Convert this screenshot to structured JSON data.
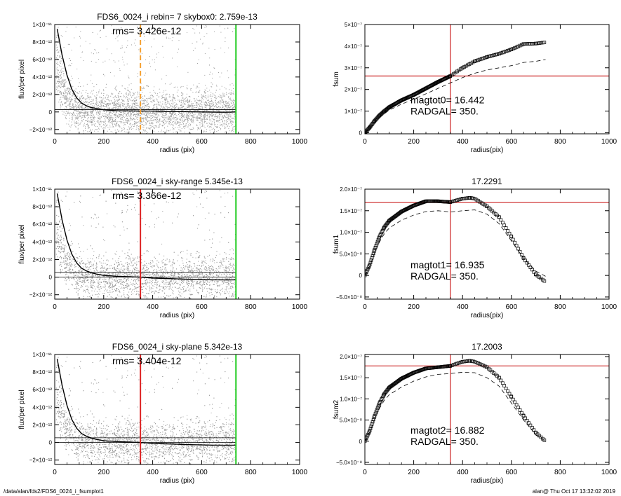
{
  "footer": {
    "path": "/data/alan/fds2/FDS6_0024_i_fsumplot1",
    "stamp": "alan@  Thu Oct 17 13:32:02 2019"
  },
  "chart_data": [
    {
      "type": "scatter",
      "title": "FDS6_0024_i rebin= 7    skybox0:  2.759e-13",
      "annotation": "rms= 3.426e-12",
      "xlabel": "radius (pix)",
      "ylabel": "flux/per pixel",
      "xlim": [
        0,
        1000
      ],
      "ylim": [
        -2.5e-12,
        1e-11
      ],
      "xticks": [
        0,
        200,
        400,
        600,
        800,
        1000
      ],
      "xtick_labels": [
        "0",
        "200",
        "400",
        "600",
        "800",
        "1000"
      ],
      "yticks": [
        -2e-12,
        0,
        2e-12,
        4e-12,
        6e-12,
        8e-12,
        1e-11
      ],
      "ytick_labels": [
        "−2×10⁻¹²",
        "0",
        "2×10⁻¹²",
        "4×10⁻¹²",
        "6×10⁻¹²",
        "8×10⁻¹²",
        "1×10⁻¹¹"
      ],
      "hlines": [
        2.759e-13,
        2.759e-13
      ],
      "vlines": [
        {
          "x": 350,
          "color": "#f5a030",
          "dash": true
        },
        {
          "x": 740,
          "color": "#22cc22",
          "dash": false
        }
      ],
      "profile_line": {
        "x": [
          10,
          30,
          50,
          70,
          90,
          110,
          130,
          150,
          170,
          200,
          250,
          300,
          350,
          400,
          450,
          500,
          550,
          600,
          650,
          700,
          740
        ],
        "y": [
          9.5e-12,
          6.5e-12,
          4.2e-12,
          2.6e-12,
          1.6e-12,
          1e-12,
          7e-13,
          5e-13,
          4e-13,
          2.5e-13,
          1.5e-13,
          1.2e-13,
          1e-13,
          1e-13,
          5e-14,
          5e-14,
          2e-14,
          0,
          -2e-14,
          -3e-14,
          0
        ]
      },
      "colors": {
        "points": "#9a9a9a",
        "line": "#000000"
      }
    },
    {
      "type": "line",
      "title": "",
      "annotation": [
        "magtot0=  16.442",
        "RADGAL=    350."
      ],
      "xlabel": "radius(pix)",
      "ylabel": "fsum",
      "xlim": [
        0,
        1000
      ],
      "ylim": [
        -5e-09,
        5e-07
      ],
      "xticks": [
        0,
        200,
        400,
        600,
        800,
        1000
      ],
      "xtick_labels": [
        "0",
        "200",
        "400",
        "600",
        "800",
        "1000"
      ],
      "yticks": [
        0,
        1e-07,
        2e-07,
        3e-07,
        4e-07,
        5e-07
      ],
      "ytick_labels": [
        "0",
        "1×10⁻⁷",
        "2×10⁻⁷",
        "3×10⁻⁷",
        "4×10⁻⁷",
        "5×10⁻⁷"
      ],
      "crosshair": {
        "x": 350,
        "y": 2.62e-07,
        "color": "#cc2222"
      },
      "series": [
        {
          "style": "squares",
          "x": [
            0,
            20,
            40,
            60,
            80,
            100,
            150,
            200,
            250,
            300,
            350,
            400,
            450,
            500,
            550,
            600,
            650,
            700,
            740
          ],
          "y": [
            0,
            2.5e-08,
            5.5e-08,
            8e-08,
            1e-07,
            1.18e-07,
            1.5e-07,
            1.75e-07,
            2.05e-07,
            2.35e-07,
            2.62e-07,
            3e-07,
            3.3e-07,
            3.5e-07,
            3.65e-07,
            3.85e-07,
            4.1e-07,
            4.12e-07,
            4.18e-07
          ]
        },
        {
          "style": "dashed",
          "x": [
            0,
            20,
            40,
            60,
            80,
            100,
            150,
            200,
            250,
            300,
            350,
            400,
            450,
            500,
            550,
            600,
            650,
            700,
            740
          ],
          "y": [
            0,
            2.2e-08,
            4.8e-08,
            7e-08,
            8.8e-08,
            1.05e-07,
            1.32e-07,
            1.55e-07,
            1.8e-07,
            2.05e-07,
            2.3e-07,
            2.55e-07,
            2.75e-07,
            2.9e-07,
            3e-07,
            3.1e-07,
            3.25e-07,
            3.3e-07,
            3.38e-07
          ]
        }
      ]
    },
    {
      "type": "scatter",
      "title": "FDS6_0024_i sky-range  5.345e-13",
      "annotation": "rms= 3.366e-12",
      "xlabel": "radius (pix)",
      "ylabel": "flux/per pixel",
      "xlim": [
        0,
        1000
      ],
      "ylim": [
        -2.5e-12,
        1e-11
      ],
      "xticks": [
        0,
        200,
        400,
        600,
        800,
        1000
      ],
      "xtick_labels": [
        "0",
        "200",
        "400",
        "600",
        "800",
        "1000"
      ],
      "yticks": [
        -2e-12,
        0,
        2e-12,
        4e-12,
        6e-12,
        8e-12,
        1e-11
      ],
      "ytick_labels": [
        "−2×10⁻¹²",
        "0",
        "2×10⁻¹²",
        "4×10⁻¹²",
        "6×10⁻¹²",
        "8×10⁻¹²",
        "1×10⁻¹¹"
      ],
      "hlines": [
        5.345e-13,
        0
      ],
      "vlines": [
        {
          "x": 350,
          "color": "#dd2222",
          "dash": false
        },
        {
          "x": 740,
          "color": "#22cc22",
          "dash": false
        }
      ],
      "profile_line": {
        "x": [
          10,
          30,
          50,
          70,
          90,
          110,
          130,
          150,
          170,
          200,
          250,
          300,
          350,
          400,
          450,
          500,
          550,
          600,
          650,
          700,
          740
        ],
        "y": [
          9.5e-12,
          6.5e-12,
          4.2e-12,
          2.6e-12,
          1.6e-12,
          1e-12,
          7e-13,
          5e-13,
          3.5e-13,
          2e-13,
          1e-13,
          5e-14,
          0,
          -1e-13,
          -1.5e-13,
          -2e-13,
          -2.5e-13,
          -2.8e-13,
          -3e-13,
          -3.2e-13,
          -3e-13
        ]
      },
      "colors": {
        "points": "#9a9a9a",
        "line": "#000000"
      }
    },
    {
      "type": "line",
      "title": "17.2291",
      "annotation": [
        "magtot1=  16.935",
        "RADGAL=    350."
      ],
      "xlabel": "radius(pix)",
      "ylabel": "fsum1",
      "xlim": [
        0,
        1000
      ],
      "ylim": [
        -5.5e-08,
        2e-07
      ],
      "xticks": [
        0,
        200,
        400,
        600,
        800,
        1000
      ],
      "xtick_labels": [
        "0",
        "200",
        "400",
        "600",
        "800",
        "1000"
      ],
      "yticks": [
        -5e-08,
        0,
        5e-08,
        1e-07,
        1.5e-07,
        2e-07
      ],
      "ytick_labels": [
        "−5.0×10⁻⁸",
        "0",
        "5.0×10⁻⁸",
        "1.0×10⁻⁷",
        "1.5×10⁻⁷",
        "2.0×10⁻⁷"
      ],
      "crosshair": {
        "x": 350,
        "y": 1.69e-07,
        "color": "#cc2222"
      },
      "series": [
        {
          "style": "squares",
          "x": [
            0,
            20,
            40,
            60,
            80,
            100,
            150,
            200,
            250,
            300,
            350,
            400,
            430,
            450,
            500,
            550,
            600,
            650,
            700,
            740
          ],
          "y": [
            0,
            2.5e-08,
            6e-08,
            9e-08,
            1.12e-07,
            1.27e-07,
            1.48e-07,
            1.62e-07,
            1.72e-07,
            1.72e-07,
            1.7e-07,
            1.78e-07,
            1.8e-07,
            1.78e-07,
            1.6e-07,
            1.35e-07,
            9e-08,
            4e-08,
            2e-09,
            -1.5e-08
          ]
        },
        {
          "style": "dashed",
          "x": [
            0,
            20,
            40,
            60,
            80,
            100,
            150,
            200,
            250,
            300,
            350,
            400,
            450,
            500,
            550,
            600,
            650,
            700,
            740
          ],
          "y": [
            0,
            2.2e-08,
            5.2e-08,
            7.8e-08,
            9.7e-08,
            1.1e-07,
            1.28e-07,
            1.4e-07,
            1.48e-07,
            1.5e-07,
            1.47e-07,
            1.5e-07,
            1.52e-07,
            1.42e-07,
            1.2e-07,
            8e-08,
            4e-08,
            1e-08,
            -2e-09
          ]
        }
      ]
    },
    {
      "type": "scatter",
      "title": "FDS6_0024_i sky-plane  5.342e-13",
      "annotation": "rms= 3.404e-12",
      "xlabel": "radius (pix)",
      "ylabel": "flux/per pixel",
      "xlim": [
        0,
        1000
      ],
      "ylim": [
        -2.5e-12,
        1e-11
      ],
      "xticks": [
        0,
        200,
        400,
        600,
        800,
        1000
      ],
      "xtick_labels": [
        "0",
        "200",
        "400",
        "600",
        "800",
        "1000"
      ],
      "yticks": [
        -2e-12,
        0,
        2e-12,
        4e-12,
        6e-12,
        8e-12,
        1e-11
      ],
      "ytick_labels": [
        "−2×10⁻¹²",
        "0",
        "2×10⁻¹²",
        "4×10⁻¹²",
        "6×10⁻¹²",
        "8×10⁻¹²",
        "1×10⁻¹¹"
      ],
      "hlines": [
        5.342e-13,
        0
      ],
      "vlines": [
        {
          "x": 350,
          "color": "#dd2222",
          "dash": false
        },
        {
          "x": 740,
          "color": "#22cc22",
          "dash": false
        }
      ],
      "profile_line": {
        "x": [
          10,
          30,
          50,
          70,
          90,
          110,
          130,
          150,
          170,
          200,
          250,
          300,
          350,
          400,
          450,
          500,
          550,
          600,
          650,
          700,
          740
        ],
        "y": [
          9.5e-12,
          6.5e-12,
          4.2e-12,
          2.6e-12,
          1.6e-12,
          1e-12,
          7e-13,
          5e-13,
          3.5e-13,
          2e-13,
          1e-13,
          5e-14,
          0,
          -1e-13,
          -1.5e-13,
          -2e-13,
          -2.5e-13,
          -2.8e-13,
          -3e-13,
          -3.2e-13,
          -3e-13
        ]
      },
      "colors": {
        "points": "#9a9a9a",
        "line": "#000000"
      }
    },
    {
      "type": "line",
      "title": "17.2003",
      "annotation": [
        "magtot2=  16.882",
        "RADGAL=    350."
      ],
      "xlabel": "radius(pix)",
      "ylabel": "fsum2",
      "xlim": [
        0,
        1000
      ],
      "ylim": [
        -5.5e-08,
        2.05e-07
      ],
      "xticks": [
        0,
        200,
        400,
        600,
        800,
        1000
      ],
      "xtick_labels": [
        "0",
        "200",
        "400",
        "600",
        "800",
        "1000"
      ],
      "yticks": [
        -5e-08,
        0,
        5e-08,
        1e-07,
        1.5e-07,
        2e-07
      ],
      "ytick_labels": [
        "−5.0×10⁻⁸",
        "0",
        "5.0×10⁻⁸",
        "1.0×10⁻⁷",
        "1.5×10⁻⁷",
        "2.0×10⁻⁷"
      ],
      "crosshair": {
        "x": 350,
        "y": 1.78e-07,
        "color": "#cc2222"
      },
      "series": [
        {
          "style": "squares",
          "x": [
            0,
            20,
            40,
            60,
            80,
            100,
            150,
            200,
            250,
            300,
            350,
            400,
            430,
            450,
            500,
            550,
            600,
            650,
            700,
            740
          ],
          "y": [
            0,
            2.5e-08,
            6e-08,
            9e-08,
            1.12e-07,
            1.27e-07,
            1.48e-07,
            1.62e-07,
            1.72e-07,
            1.75e-07,
            1.78e-07,
            1.88e-07,
            1.9e-07,
            1.88e-07,
            1.75e-07,
            1.5e-07,
            1.05e-07,
            6e-08,
            2e-08,
            0
          ]
        },
        {
          "style": "dashed",
          "x": [
            0,
            20,
            40,
            60,
            80,
            100,
            150,
            200,
            250,
            300,
            350,
            400,
            450,
            500,
            550,
            600,
            650,
            700,
            740
          ],
          "y": [
            0,
            2.2e-08,
            5.2e-08,
            7.8e-08,
            9.7e-08,
            1.1e-07,
            1.28e-07,
            1.42e-07,
            1.52e-07,
            1.58e-07,
            1.6e-07,
            1.63e-07,
            1.62e-07,
            1.5e-07,
            1.3e-07,
            9e-08,
            5e-08,
            1.5e-08,
            0
          ]
        }
      ]
    }
  ]
}
